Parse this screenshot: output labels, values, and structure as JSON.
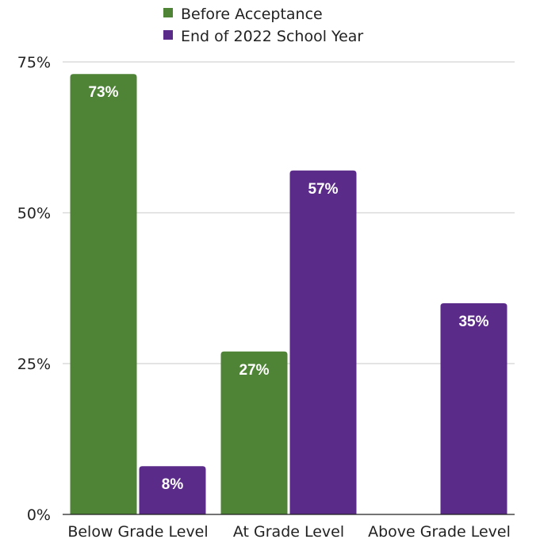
{
  "chart_data": {
    "type": "bar",
    "title": "",
    "xlabel": "",
    "ylabel": "",
    "categories": [
      "Below Grade Level",
      "At Grade Level",
      "Above Grade Level"
    ],
    "series": [
      {
        "name": "Before Acceptance",
        "color": "#4f8436",
        "values": [
          73,
          27,
          null
        ],
        "labels": [
          "73%",
          "27%",
          ""
        ]
      },
      {
        "name": "End of 2022 School Year",
        "color": "#5b2b8a",
        "values": [
          8,
          57,
          35
        ],
        "labels": [
          "8%",
          "57%",
          "35%"
        ]
      }
    ],
    "ylim": [
      0,
      75
    ],
    "yticks": [
      0,
      25,
      50,
      75
    ],
    "ytick_labels": [
      "0%",
      "25%",
      "50%",
      "75%"
    ],
    "grid": true,
    "legend_position": "top-center"
  }
}
